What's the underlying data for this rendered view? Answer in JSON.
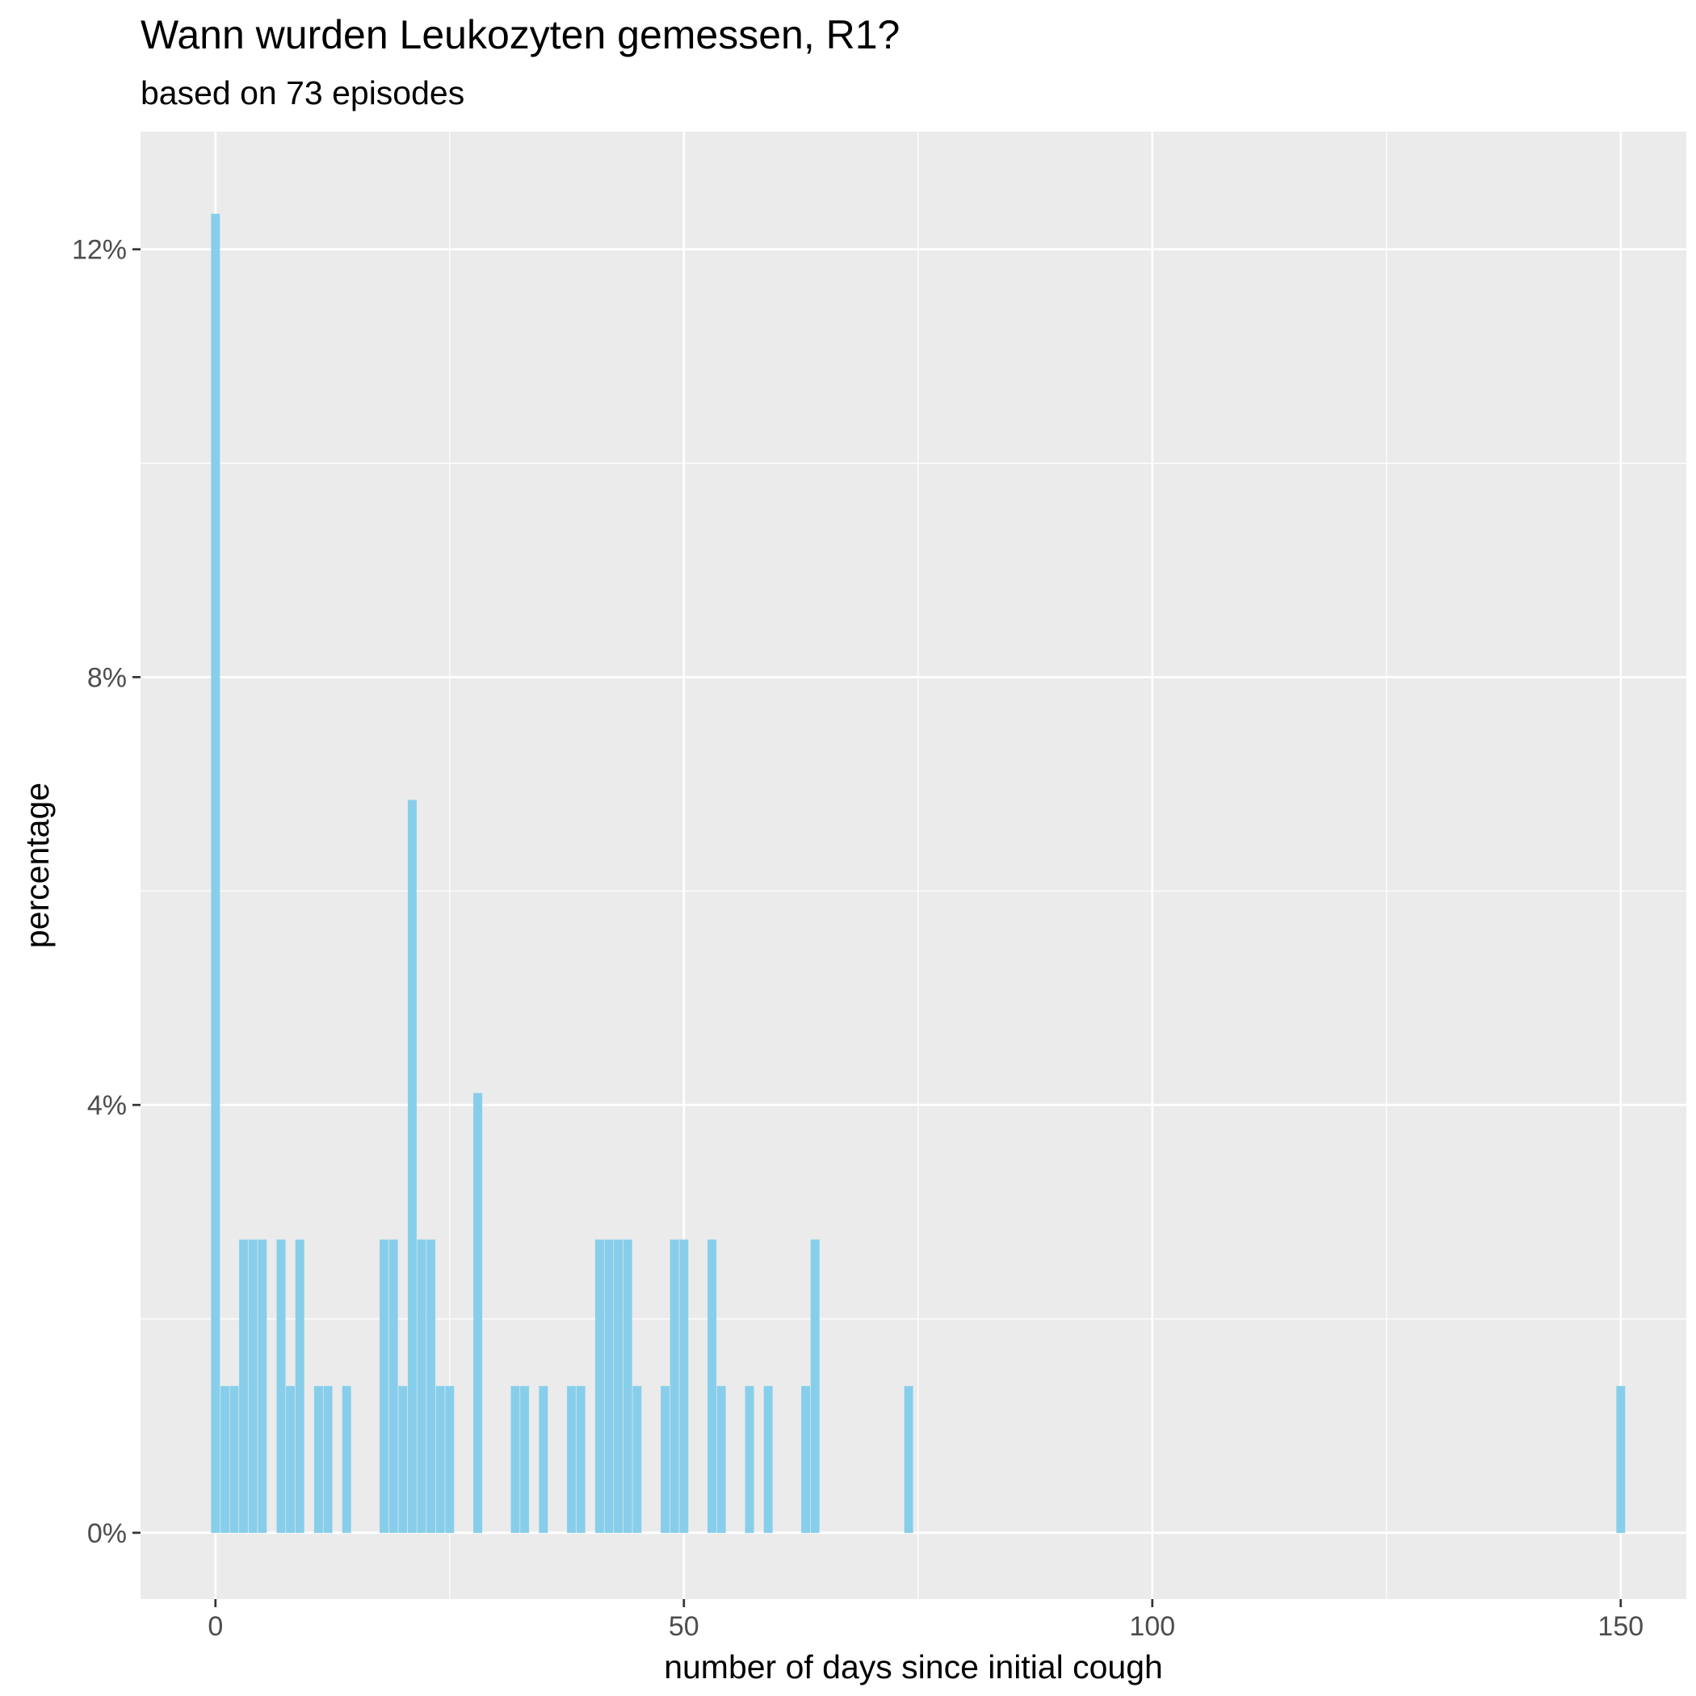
{
  "chart_data": {
    "type": "bar",
    "title": "Wann wurden Leukozyten gemessen, R1?",
    "subtitle": "based on 73 episodes",
    "xlabel": "number of days since initial cough",
    "ylabel": "percentage",
    "xlim": [
      -8,
      157
    ],
    "ylim": [
      -0.62,
      13.1
    ],
    "x_ticks": [
      0,
      50,
      100,
      150
    ],
    "y_ticks": [
      0,
      4,
      8,
      12
    ],
    "y_tick_labels": [
      "0%",
      "4%",
      "8%",
      "12%"
    ],
    "grid": true,
    "bar_color": "#87CEEB",
    "panel_background": "#EBEBEB",
    "x": [
      0,
      1,
      2,
      3,
      4,
      5,
      7,
      8,
      9,
      11,
      12,
      14,
      18,
      19,
      20,
      21,
      22,
      23,
      24,
      25,
      28,
      32,
      33,
      35,
      38,
      39,
      41,
      42,
      43,
      44,
      45,
      48,
      49,
      50,
      53,
      54,
      57,
      59,
      63,
      64,
      74,
      150
    ],
    "values": [
      12.33,
      1.37,
      1.37,
      2.74,
      2.74,
      2.74,
      2.74,
      1.37,
      2.74,
      1.37,
      1.37,
      1.37,
      2.74,
      2.74,
      1.37,
      6.85,
      2.74,
      2.74,
      1.37,
      1.37,
      4.11,
      1.37,
      1.37,
      1.37,
      1.37,
      1.37,
      2.74,
      2.74,
      2.74,
      2.74,
      1.37,
      1.37,
      2.74,
      2.74,
      2.74,
      1.37,
      1.37,
      1.37,
      1.37,
      2.74,
      1.37,
      1.37
    ]
  }
}
